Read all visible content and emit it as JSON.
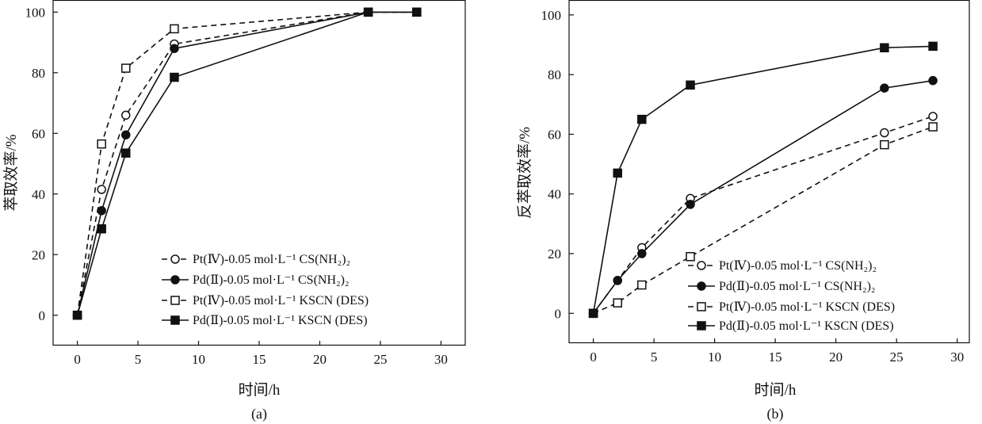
{
  "chart_data": [
    {
      "type": "line",
      "panel": "(a)",
      "title": "",
      "xlabel": "时间/h",
      "ylabel": "萃取效率/%",
      "xlim": [
        -2,
        32
      ],
      "ylim": [
        -10,
        104
      ],
      "xticks": [
        0,
        5,
        10,
        15,
        20,
        25,
        30
      ],
      "yticks": [
        0,
        20,
        40,
        60,
        80,
        100
      ],
      "grid": false,
      "legend_position": "bottom-right",
      "series": [
        {
          "name": "Pt(Ⅳ)-0.05 mol·L⁻¹ CS(NH₂)₂",
          "marker": "open-circle",
          "dash": "dashed",
          "x": [
            0,
            2,
            4,
            8,
            24,
            28
          ],
          "y": [
            0,
            41.5,
            66,
            89.5,
            100,
            100
          ]
        },
        {
          "name": "Pd(Ⅱ)-0.05 mol·L⁻¹ CS(NH₂)₂",
          "marker": "filled-circle",
          "dash": "solid",
          "x": [
            0,
            2,
            4,
            8,
            24,
            28
          ],
          "y": [
            0,
            34.5,
            59.5,
            88,
            100,
            100
          ]
        },
        {
          "name": "Pt(Ⅳ)-0.05 mol·L⁻¹ KSCN (DES)",
          "marker": "open-square",
          "dash": "dashed",
          "x": [
            0,
            2,
            4,
            8,
            24,
            28
          ],
          "y": [
            0,
            56.5,
            81.5,
            94.5,
            100,
            100
          ]
        },
        {
          "name": "Pd(Ⅱ)-0.05 mol·L⁻¹ KSCN (DES)",
          "marker": "filled-square",
          "dash": "solid",
          "x": [
            0,
            2,
            4,
            8,
            24,
            28
          ],
          "y": [
            0,
            28.5,
            53.5,
            78.5,
            100,
            100
          ]
        }
      ]
    },
    {
      "type": "line",
      "panel": "(b)",
      "title": "",
      "xlabel": "时间/h",
      "ylabel": "反萃取效率/%",
      "xlim": [
        -2,
        31
      ],
      "ylim": [
        -10,
        105
      ],
      "xticks": [
        0,
        5,
        10,
        15,
        20,
        25,
        30
      ],
      "yticks": [
        0,
        20,
        40,
        60,
        80,
        100
      ],
      "grid": false,
      "legend_position": "bottom-right",
      "series": [
        {
          "name": "Pt(Ⅳ)-0.05 mol·L⁻¹ CS(NH₂)₂",
          "marker": "open-circle",
          "dash": "dashed",
          "x": [
            0,
            2,
            4,
            8,
            24,
            28
          ],
          "y": [
            0,
            11,
            22,
            38.5,
            60.5,
            66
          ]
        },
        {
          "name": "Pd(Ⅱ)-0.05 mol·L⁻¹ CS(NH₂)₂",
          "marker": "filled-circle",
          "dash": "solid",
          "x": [
            0,
            2,
            4,
            8,
            24,
            28
          ],
          "y": [
            0,
            11,
            20,
            36.5,
            75.5,
            78
          ]
        },
        {
          "name": "Pt(Ⅳ)-0.05 mol·L⁻¹ KSCN (DES)",
          "marker": "open-square",
          "dash": "dashed",
          "x": [
            0,
            2,
            4,
            8,
            24,
            28
          ],
          "y": [
            0,
            3.5,
            9.5,
            19,
            56.5,
            62.5
          ]
        },
        {
          "name": "Pd(Ⅱ)-0.05 mol·L⁻¹ KSCN (DES)",
          "marker": "filled-square",
          "dash": "solid",
          "x": [
            0,
            2,
            4,
            8,
            24,
            28
          ],
          "y": [
            0,
            47,
            65,
            76.5,
            89,
            89.5
          ]
        }
      ]
    }
  ]
}
